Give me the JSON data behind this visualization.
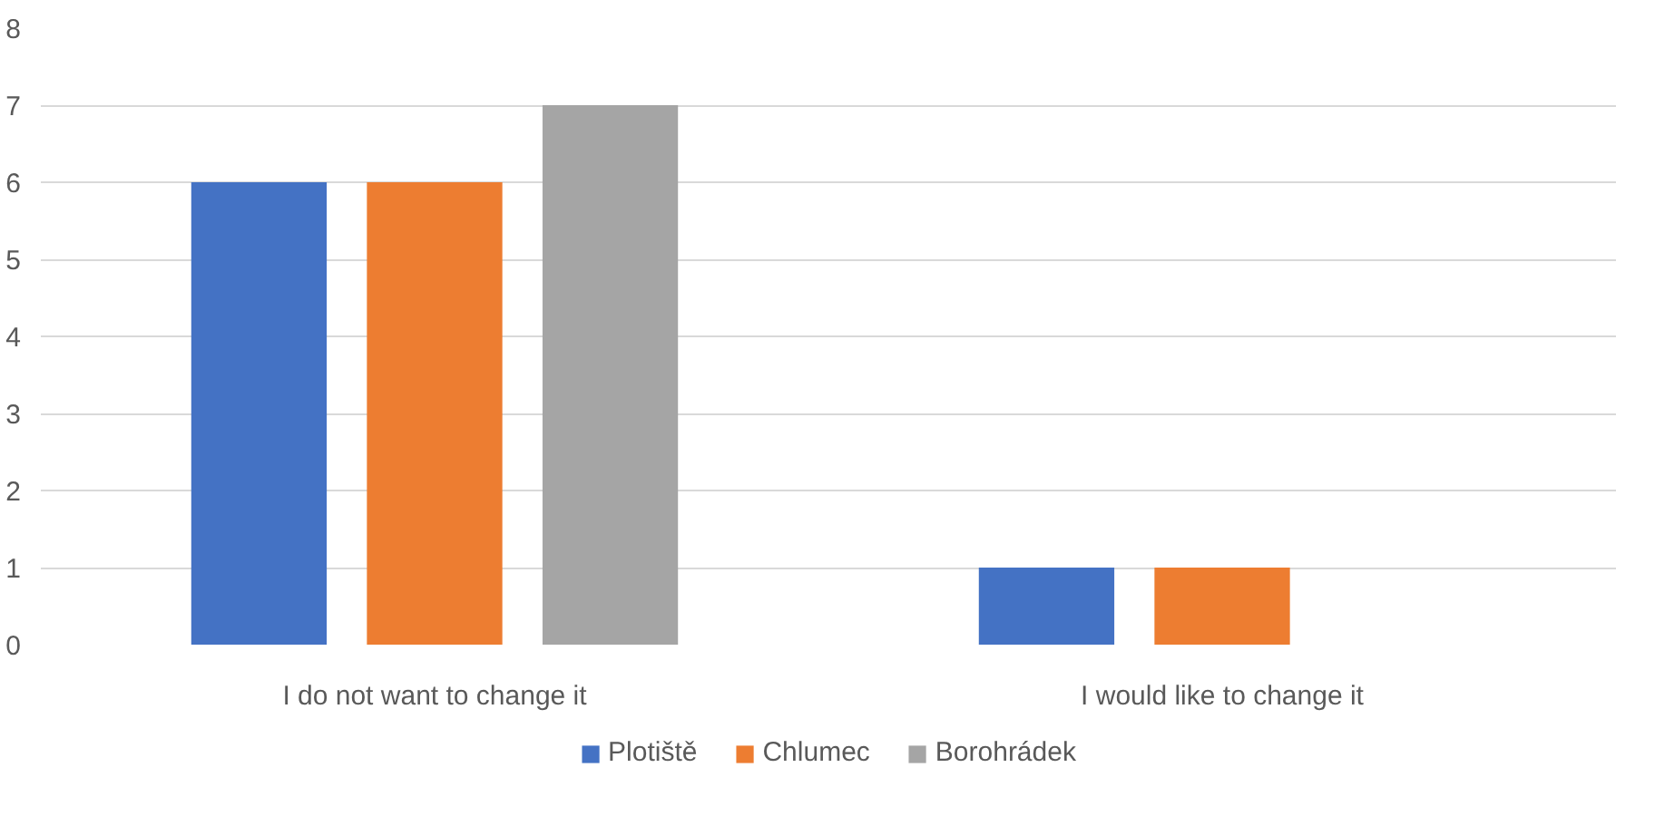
{
  "chart_data": {
    "type": "bar",
    "categories": [
      "I do not want to change it",
      "I would like to change it"
    ],
    "series": [
      {
        "name": "Plotiště",
        "color": "#4472c4",
        "values": [
          6,
          1
        ]
      },
      {
        "name": "Chlumec",
        "color": "#ed7d31",
        "values": [
          6,
          1
        ]
      },
      {
        "name": "Borohrádek",
        "color": "#a5a5a5",
        "values": [
          7,
          0
        ]
      }
    ],
    "ylim": [
      0,
      8
    ],
    "yticks": [
      0,
      1,
      2,
      3,
      4,
      5,
      6,
      7,
      8
    ],
    "grid": "y",
    "legend": "bottom"
  }
}
